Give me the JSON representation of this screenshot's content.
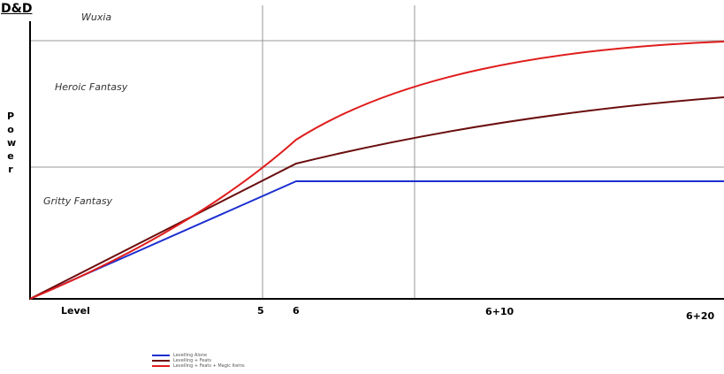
{
  "title": "D&D",
  "y_label": "Power",
  "x_labels": [
    "Level",
    "5",
    "6",
    "6+10",
    "6+20"
  ],
  "zones": [
    "Wuxia",
    "Heroic Fantasy",
    "Gritty Fantasy"
  ],
  "legend": [
    "Levelling Alone",
    "Levelling + Feats",
    "Levelling + Feats + Magic Items"
  ]
}
